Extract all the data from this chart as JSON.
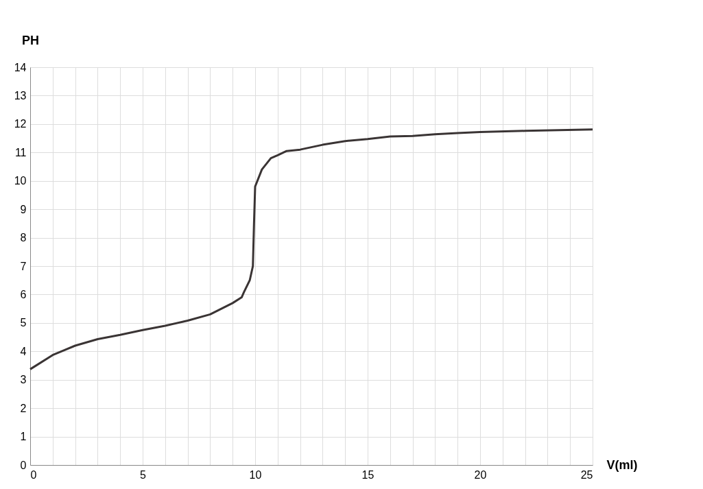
{
  "chart_data": {
    "type": "line",
    "xlabel": "V(ml)",
    "ylabel": "PH",
    "x": [
      0,
      1,
      2,
      3,
      4,
      5,
      6,
      7,
      8,
      9,
      9.4,
      9.5,
      9.76,
      9.9,
      9.95,
      10,
      10.3,
      10.7,
      11,
      11.4,
      12,
      13,
      14,
      15,
      16,
      17,
      18,
      19,
      20,
      22,
      25
    ],
    "series": [
      {
        "color": "#3a3434",
        "values": [
          3.37,
          3.87,
          4.2,
          4.43,
          4.58,
          4.75,
          4.9,
          5.08,
          5.3,
          5.7,
          5.9,
          6.08,
          6.5,
          7.0,
          8.5,
          9.8,
          10.4,
          10.8,
          10.9,
          11.05,
          11.1,
          11.27,
          11.4,
          11.47,
          11.56,
          11.58,
          11.64,
          11.68,
          11.72,
          11.76,
          11.81
        ]
      }
    ],
    "xlim": [
      0,
      25
    ],
    "ylim": [
      0,
      14
    ],
    "xticks": [
      0,
      {
        "value": 1,
        "label": null
      },
      {
        "value": 2,
        "label": null
      },
      {
        "value": 3,
        "label": null
      },
      {
        "value": 4,
        "label": null
      },
      5,
      {
        "value": 6,
        "label": null
      },
      {
        "value": 7,
        "label": null
      },
      {
        "value": 8,
        "label": null
      },
      {
        "value": 9,
        "label": null
      },
      10,
      {
        "value": 11,
        "label": null
      },
      {
        "value": 12,
        "label": null
      },
      {
        "value": 13,
        "label": null
      },
      {
        "value": 14,
        "label": null
      },
      15,
      {
        "value": 16,
        "label": null
      },
      {
        "value": 17,
        "label": null
      },
      {
        "value": 18,
        "label": null
      },
      {
        "value": 19,
        "label": null
      },
      20,
      {
        "value": 21,
        "label": null
      },
      {
        "value": 22,
        "label": null
      },
      {
        "value": 23,
        "label": null
      },
      {
        "value": 24,
        "label": null
      },
      25
    ],
    "yticks": [
      0,
      1,
      2,
      3,
      4,
      5,
      6,
      7,
      8,
      9,
      10,
      11,
      12,
      13,
      14
    ],
    "grid": true,
    "line_style": "solid",
    "marker": "none"
  }
}
